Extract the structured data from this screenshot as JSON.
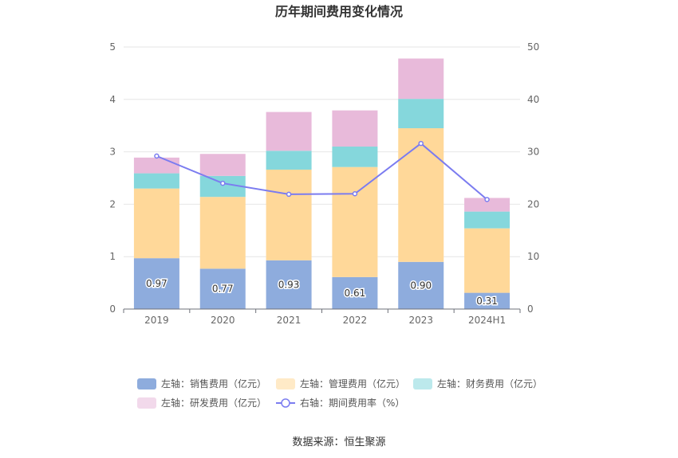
{
  "chart_data": {
    "type": "bar",
    "title": "历年期间费用变化情况",
    "categories": [
      "2019",
      "2020",
      "2021",
      "2022",
      "2023",
      "2024H1"
    ],
    "left_axis": {
      "ylim": [
        0,
        5
      ],
      "ticks": [
        "0",
        "1",
        "2",
        "3",
        "4",
        "5"
      ]
    },
    "right_axis": {
      "ylim": [
        0,
        50
      ],
      "ticks": [
        "0",
        "10",
        "20",
        "30",
        "40",
        "50"
      ]
    },
    "stacked": true,
    "series": [
      {
        "name": "左轴：销售费用（亿元）",
        "color": "#8eacdd",
        "axis": "left",
        "type": "bar",
        "values": [
          0.97,
          0.77,
          0.93,
          0.61,
          0.9,
          0.31
        ],
        "labels": [
          "0.97",
          "0.77",
          "0.93",
          "0.61",
          "0.90",
          "0.31"
        ]
      },
      {
        "name": "左轴：管理费用（亿元）",
        "color": "#ffd899",
        "axis": "left",
        "type": "bar",
        "values": [
          1.33,
          1.37,
          1.73,
          2.1,
          2.55,
          1.23
        ]
      },
      {
        "name": "左轴：财务费用（亿元）",
        "color": "#85d7dc",
        "axis": "left",
        "type": "bar",
        "values": [
          0.29,
          0.4,
          0.36,
          0.39,
          0.56,
          0.32
        ]
      },
      {
        "name": "左轴：研发费用（亿元）",
        "color": "#e8bada",
        "axis": "left",
        "type": "bar",
        "values": [
          0.3,
          0.42,
          0.74,
          0.69,
          0.77,
          0.26
        ]
      },
      {
        "name": "右轴：期间费用率（%）",
        "color": "#7b7cf0",
        "axis": "right",
        "type": "line",
        "values": [
          29.2,
          24.0,
          21.9,
          22.0,
          31.6,
          20.9
        ]
      }
    ],
    "legend_position": "bottom",
    "grid": true
  },
  "source": "数据来源：恒生聚源"
}
